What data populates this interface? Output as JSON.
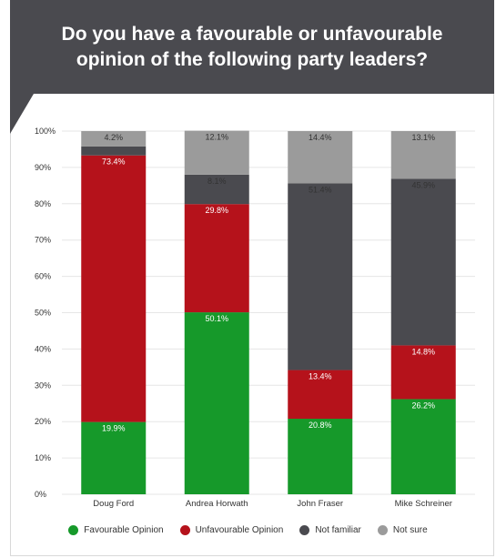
{
  "header": {
    "title": "Do you have a favourable or unfavourable opinion of the following party leaders?"
  },
  "colors": {
    "favourable": "#16992a",
    "unfavourable": "#b5121b",
    "not_familiar": "#4a4a4f",
    "not_sure": "#9b9b9b"
  },
  "chart_data": {
    "type": "bar",
    "stacked": true,
    "title": "Do you have a favourable or unfavourable opinion of the following party leaders?",
    "categories": [
      "Doug Ford",
      "Andrea Horwath",
      "John Fraser",
      "Mike Schreiner"
    ],
    "series": [
      {
        "name": "Favourable Opinion",
        "values": [
          19.9,
          50.1,
          20.8,
          26.2
        ],
        "labels": [
          "19.9%",
          "50.1%",
          "20.8%",
          "26.2%"
        ]
      },
      {
        "name": "Unfavourable Opinion",
        "values": [
          73.4,
          29.8,
          13.4,
          14.8
        ],
        "labels": [
          "73.4%",
          "29.8%",
          "13.4%",
          "14.8%"
        ]
      },
      {
        "name": "Not familiar",
        "values": [
          2.5,
          8.1,
          51.4,
          45.9
        ],
        "labels": [
          "",
          "8.1%",
          "51.4%",
          "45.9%"
        ]
      },
      {
        "name": "Not sure",
        "values": [
          4.2,
          12.1,
          14.4,
          13.1
        ],
        "labels": [
          "4.2%",
          "12.1%",
          "14.4%",
          "13.1%"
        ]
      }
    ],
    "ylim": [
      0,
      100
    ],
    "yticks": [
      "0%",
      "10%",
      "20%",
      "30%",
      "40%",
      "50%",
      "60%",
      "70%",
      "80%",
      "90%",
      "100%"
    ],
    "grid": true,
    "legend_position": "bottom"
  }
}
